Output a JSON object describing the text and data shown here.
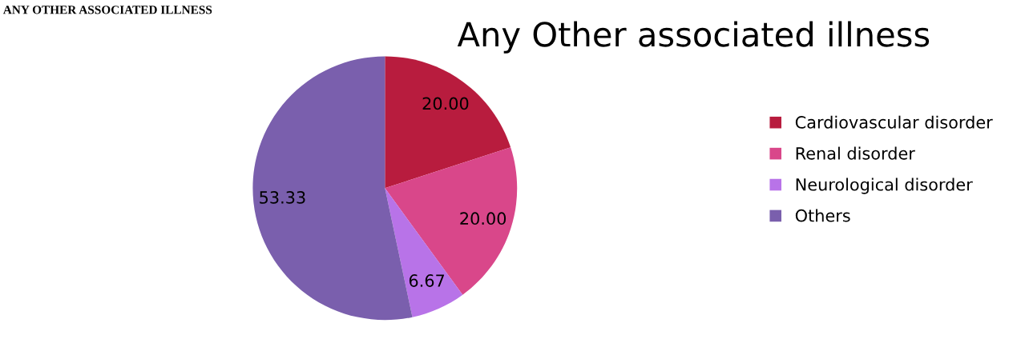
{
  "chart_data": {
    "type": "pie",
    "title": "Any Other associated illness",
    "annotations": [
      "ANY OTHER ASSOCIATED ILLNESS"
    ],
    "categories": [
      "Cardiovascular disorder",
      "Renal disorder",
      "Neurological disorder",
      "Others"
    ],
    "values": [
      20.0,
      20.0,
      6.67,
      53.33
    ],
    "value_labels": [
      "20.00",
      "20.00",
      "6.67",
      "53.33"
    ],
    "colors": [
      "#b81c3e",
      "#d9478a",
      "#b873e8",
      "#7a5fad"
    ],
    "legend": "right"
  }
}
